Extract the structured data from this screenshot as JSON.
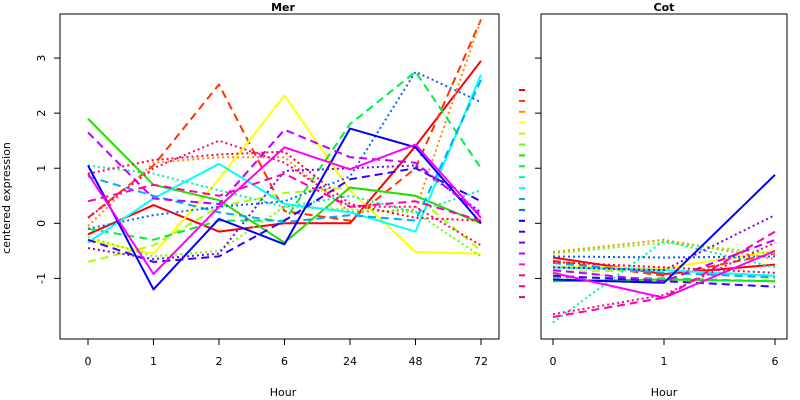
{
  "chart_data": [
    {
      "type": "line",
      "title": "Mer",
      "xlabel": "Hour",
      "ylabel": "centered expression",
      "categories": [
        "0",
        "1",
        "2",
        "6",
        "24",
        "48",
        "72"
      ],
      "ylim": [
        -2.1,
        3.8
      ],
      "yticks": [
        "-1",
        "0",
        "1",
        "2",
        "3"
      ],
      "series": [
        {
          "color": "#ff0000",
          "dash": "solid",
          "values": [
            -0.2,
            0.33,
            -0.15,
            0.0,
            0.0,
            1.4,
            2.95
          ]
        },
        {
          "color": "#ff3300",
          "dash": "longdash",
          "values": [
            0.1,
            1.05,
            2.52,
            0.22,
            0.05,
            1.0,
            3.7
          ]
        },
        {
          "color": "#ff8800",
          "dash": "dotted",
          "values": [
            -0.05,
            1.1,
            1.2,
            1.2,
            0.2,
            0.25,
            3.7
          ]
        },
        {
          "color": "#ffff00",
          "dash": "solid",
          "values": [
            -0.3,
            -0.55,
            0.8,
            2.32,
            0.6,
            -0.52,
            -0.55
          ]
        },
        {
          "color": "#aaff00",
          "dash": "longdash",
          "values": [
            -0.7,
            -0.4,
            0.3,
            0.55,
            0.65,
            0.5,
            -0.5
          ]
        },
        {
          "color": "#66ff00",
          "dash": "dotted",
          "values": [
            -0.25,
            -0.6,
            -0.5,
            0.3,
            0.25,
            0.2,
            -0.6
          ]
        },
        {
          "color": "#22dd00",
          "dash": "solid",
          "values": [
            1.9,
            0.7,
            0.42,
            -0.35,
            0.65,
            0.5,
            0.0
          ]
        },
        {
          "color": "#00ee44",
          "dash": "longdash",
          "values": [
            -0.1,
            -0.3,
            0.05,
            0.05,
            1.8,
            2.75,
            1.0
          ]
        },
        {
          "color": "#00eeaa",
          "dash": "dotted",
          "values": [
            1.05,
            0.9,
            0.6,
            0.3,
            0.5,
            0.2,
            0.6
          ]
        },
        {
          "color": "#00ffff",
          "dash": "solid",
          "values": [
            -0.35,
            0.45,
            1.08,
            0.35,
            0.2,
            -0.15,
            2.7
          ]
        },
        {
          "color": "#00aaff",
          "dash": "longdash",
          "values": [
            0.85,
            0.5,
            0.2,
            0.02,
            0.15,
            0.05,
            2.6
          ]
        },
        {
          "color": "#0066ff",
          "dash": "dotted",
          "values": [
            -0.1,
            0.15,
            0.3,
            0.4,
            0.85,
            2.75,
            2.2
          ]
        },
        {
          "color": "#0000ff",
          "dash": "solid",
          "values": [
            1.05,
            -1.2,
            0.08,
            -0.38,
            1.72,
            1.38,
            0.0
          ]
        },
        {
          "color": "#3300ff",
          "dash": "longdash",
          "values": [
            -0.3,
            -0.7,
            -0.6,
            0.05,
            0.8,
            1.0,
            0.4
          ]
        },
        {
          "color": "#7700ff",
          "dash": "dotted",
          "values": [
            -0.45,
            -0.65,
            -0.55,
            0.95,
            1.0,
            1.05,
            0.2
          ]
        },
        {
          "color": "#bb00ff",
          "dash": "longdash",
          "values": [
            1.65,
            0.45,
            0.35,
            1.7,
            1.2,
            1.1,
            0.15
          ]
        },
        {
          "color": "#ff00ff",
          "dash": "solid",
          "values": [
            0.9,
            -0.92,
            0.3,
            1.38,
            0.98,
            1.43,
            0.1
          ]
        },
        {
          "color": "#ff00aa",
          "dash": "longdash",
          "values": [
            0.4,
            0.7,
            0.5,
            0.9,
            0.3,
            0.4,
            0.05
          ]
        },
        {
          "color": "#ff0077",
          "dash": "dotted",
          "values": [
            0.1,
            1.0,
            1.5,
            1.1,
            0.3,
            0.3,
            -0.4
          ]
        },
        {
          "color": "#ff0044",
          "dash": "dotted",
          "values": [
            0.9,
            1.15,
            1.25,
            1.3,
            0.35,
            0.1,
            0.05
          ]
        }
      ]
    },
    {
      "type": "line",
      "title": "Cot",
      "xlabel": "Hour",
      "ylabel": "",
      "categories": [
        "0",
        "1",
        "6"
      ],
      "ylim": [
        -2.1,
        3.8
      ],
      "yticks": [],
      "series": [
        {
          "color": "#ff0000",
          "dash": "solid",
          "values": [
            -0.62,
            -0.92,
            -0.75
          ]
        },
        {
          "color": "#ff3300",
          "dash": "longdash",
          "values": [
            -0.68,
            -0.95,
            -0.55
          ]
        },
        {
          "color": "#ff8800",
          "dash": "dotted",
          "values": [
            -0.52,
            -0.3,
            -0.65
          ]
        },
        {
          "color": "#ffff00",
          "dash": "solid",
          "values": [
            -0.78,
            -0.82,
            -0.5
          ]
        },
        {
          "color": "#aaff00",
          "dash": "longdash",
          "values": [
            -0.88,
            -0.85,
            -1.0
          ]
        },
        {
          "color": "#66ff00",
          "dash": "dotted",
          "values": [
            -0.55,
            -0.35,
            -0.55
          ]
        },
        {
          "color": "#22dd00",
          "dash": "solid",
          "values": [
            -1.05,
            -1.02,
            -1.05
          ]
        },
        {
          "color": "#00ee44",
          "dash": "longdash",
          "values": [
            -0.98,
            -1.0,
            -1.05
          ]
        },
        {
          "color": "#00eeaa",
          "dash": "dotted",
          "values": [
            -1.8,
            -0.32,
            -0.8
          ]
        },
        {
          "color": "#00ffff",
          "dash": "solid",
          "values": [
            -0.8,
            -0.85,
            -0.95
          ]
        },
        {
          "color": "#00aaff",
          "dash": "longdash",
          "values": [
            -0.72,
            -0.9,
            -0.98
          ]
        },
        {
          "color": "#0066ff",
          "dash": "dotted",
          "values": [
            -0.6,
            -0.62,
            -0.6
          ]
        },
        {
          "color": "#0000ff",
          "dash": "solid",
          "values": [
            -1.02,
            -1.08,
            0.88
          ]
        },
        {
          "color": "#3300ff",
          "dash": "longdash",
          "values": [
            -0.95,
            -1.05,
            -1.15
          ]
        },
        {
          "color": "#7700ff",
          "dash": "dotted",
          "values": [
            -0.8,
            -0.85,
            0.15
          ]
        },
        {
          "color": "#bb00ff",
          "dash": "longdash",
          "values": [
            -0.85,
            -1.05,
            -0.3
          ]
        },
        {
          "color": "#ff00ff",
          "dash": "solid",
          "values": [
            -0.9,
            -1.35,
            -0.5
          ]
        },
        {
          "color": "#ff00aa",
          "dash": "longdash",
          "values": [
            -1.7,
            -1.35,
            -0.15
          ]
        },
        {
          "color": "#ff0077",
          "dash": "dotted",
          "values": [
            -1.65,
            -1.3,
            -0.35
          ]
        },
        {
          "color": "#ff0044",
          "dash": "dotted",
          "values": [
            -0.7,
            -0.8,
            -0.9
          ]
        }
      ]
    }
  ]
}
